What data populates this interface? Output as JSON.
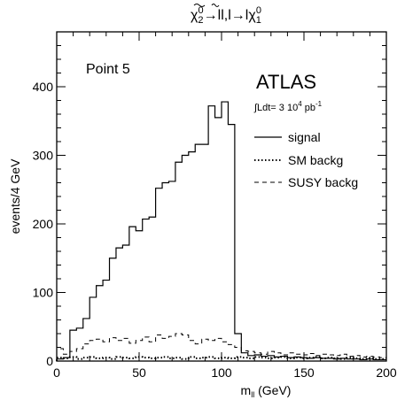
{
  "chart_data": {
    "type": "histogram",
    "title_parts": {
      "chi": "χ",
      "sub2": "2",
      "sup0": "0",
      "arrow1": "→",
      "ll": "ll",
      "comma": ",",
      "l": "l",
      "arrow2": "→l",
      "chi2": "χ",
      "sub1": "1",
      "sup0b": "0"
    },
    "xlabel": "m",
    "xlabel_sub": "ll",
    "xlabel_unit": " (GeV)",
    "ylabel": "events/4 GeV",
    "xlim": [
      0,
      200
    ],
    "ylim": [
      0,
      480
    ],
    "x_ticks": [
      0,
      50,
      100,
      150,
      200
    ],
    "y_ticks": [
      0,
      100,
      200,
      300,
      400
    ],
    "bin_width": 4,
    "annotations": {
      "point_label": "Point 5",
      "experiment": "ATLAS",
      "lumi_prefix": "∫Ldt= 3 10",
      "lumi_exp": "4",
      "lumi_suffix": " pb",
      "lumi_unit_exp": "-1"
    },
    "legend": {
      "placement": "right",
      "entries": [
        {
          "label": "signal",
          "style": "solid"
        },
        {
          "label": "SM backg",
          "style": "dotted"
        },
        {
          "label": "SUSY backg",
          "style": "dashed"
        }
      ]
    },
    "series": [
      {
        "name": "signal",
        "style": "solid",
        "edges": [
          0,
          4,
          8,
          12,
          16,
          20,
          24,
          28,
          32,
          36,
          40,
          44,
          48,
          52,
          56,
          60,
          64,
          68,
          72,
          76,
          80,
          84,
          88,
          92,
          96,
          100,
          104,
          108,
          112,
          116,
          120,
          124,
          128,
          132,
          136,
          140,
          144,
          148,
          152,
          156,
          160,
          164,
          168,
          172,
          176,
          180,
          184,
          188,
          192,
          196,
          200
        ],
        "values": [
          3,
          5,
          45,
          48,
          62,
          93,
          110,
          118,
          150,
          165,
          169,
          196,
          190,
          207,
          210,
          252,
          260,
          262,
          290,
          300,
          305,
          316,
          316,
          372,
          355,
          378,
          345,
          40,
          12,
          8,
          9,
          7,
          8,
          6,
          7,
          5,
          6,
          5,
          4,
          5,
          4,
          4,
          3,
          4,
          3,
          3,
          2,
          3,
          2,
          2
        ]
      },
      {
        "name": "SM backg",
        "style": "dotted",
        "edges": [
          0,
          4,
          8,
          12,
          16,
          20,
          24,
          28,
          32,
          36,
          40,
          44,
          48,
          52,
          56,
          60,
          64,
          68,
          72,
          76,
          80,
          84,
          88,
          92,
          96,
          100,
          104,
          108,
          112,
          116,
          120,
          124,
          128,
          132,
          136,
          140,
          144,
          148,
          152,
          156,
          160,
          164,
          168,
          172,
          176,
          180,
          184,
          188,
          192,
          196,
          200
        ],
        "values": [
          5,
          4,
          6,
          3,
          5,
          6,
          4,
          5,
          3,
          6,
          5,
          4,
          6,
          5,
          4,
          5,
          6,
          4,
          5,
          3,
          6,
          4,
          5,
          6,
          4,
          5,
          4,
          6,
          5,
          4,
          6,
          5,
          4,
          5,
          6,
          4,
          5,
          4,
          5,
          6,
          4,
          5,
          4,
          3,
          5,
          4,
          3,
          4,
          3,
          3
        ]
      },
      {
        "name": "SUSY backg",
        "style": "dashed",
        "edges": [
          0,
          4,
          8,
          12,
          16,
          20,
          24,
          28,
          32,
          36,
          40,
          44,
          48,
          52,
          56,
          60,
          64,
          68,
          72,
          76,
          80,
          84,
          88,
          92,
          96,
          100,
          104,
          108,
          112,
          116,
          120,
          124,
          128,
          132,
          136,
          140,
          144,
          148,
          152,
          156,
          160,
          164,
          168,
          172,
          176,
          180,
          184,
          188,
          192,
          196,
          200
        ],
        "values": [
          18,
          10,
          14,
          18,
          25,
          30,
          32,
          28,
          34,
          30,
          33,
          26,
          30,
          35,
          28,
          38,
          33,
          36,
          40,
          38,
          30,
          25,
          32,
          30,
          33,
          28,
          24,
          20,
          15,
          14,
          12,
          10,
          14,
          12,
          9,
          12,
          10,
          9,
          11,
          8,
          10,
          9,
          8,
          10,
          7,
          8,
          6,
          7,
          6,
          5
        ]
      }
    ]
  }
}
